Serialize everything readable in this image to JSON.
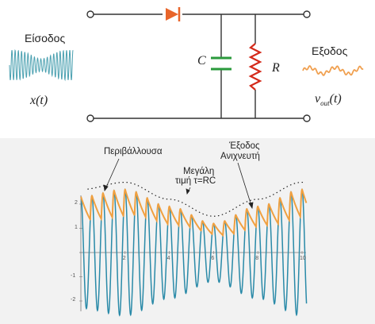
{
  "circuit": {
    "input_label": "Είσοδος",
    "input_signal": "x(t)",
    "output_label": "Εξοδος",
    "output_signal_base": "v",
    "output_signal_sub": "out",
    "output_signal_arg": "(t)",
    "capacitor_label": "C",
    "resistor_label": "R",
    "colors": {
      "diode": "#e8652a",
      "capacitor": "#2a9a3c",
      "resistor": "#d42a1a",
      "wire": "#333333",
      "input_wave": "#4aa0b0",
      "output_wave": "#f0a050"
    }
  },
  "chart_data": {
    "type": "line",
    "title": "",
    "xlabel": "",
    "ylabel": "",
    "xlim": [
      0,
      10.2
    ],
    "ylim": [
      -2.4,
      3.0
    ],
    "x_ticks": [
      "2",
      "4",
      "6",
      "8",
      "10"
    ],
    "y_ticks": [
      "2",
      "1",
      "-1",
      "-2"
    ],
    "series": [
      {
        "signal": "carrier",
        "frequency_cycles_per_unit": 2,
        "color": "#2a8aa8",
        "amplitude_points": {
          "x": [
            0,
            2,
            4,
            6,
            8,
            10
          ],
          "y": [
            2.3,
            2.6,
            1.9,
            1.2,
            1.9,
            2.6
          ]
        }
      },
      {
        "signal": "detector output",
        "color": "#f0a040"
      },
      {
        "signal": "envelope",
        "color": "#222222",
        "style": "dotted"
      }
    ],
    "annotations": [
      {
        "text": "Περιβάλλουσα"
      },
      {
        "text": "Μεγάλη"
      },
      {
        "text": "τιμή τ=RC"
      },
      {
        "text": "Έξοδος"
      },
      {
        "text": "Ανιχνευτή"
      }
    ]
  }
}
